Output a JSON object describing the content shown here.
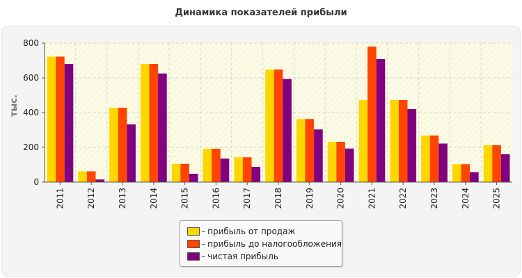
{
  "chart_data": {
    "type": "bar",
    "title": "Динамика показателей прибыли",
    "ylabel": "тыс.",
    "xlabel": "",
    "ylim": [
      0,
      800
    ],
    "yticks": [
      0,
      200,
      400,
      600,
      800
    ],
    "grid": true,
    "legend_position": "bottom-center",
    "categories": [
      "2011",
      "2012",
      "2013",
      "2014",
      "2015",
      "2016",
      "2017",
      "2018",
      "2019",
      "2020",
      "2021",
      "2022",
      "2023",
      "2024",
      "2025"
    ],
    "series": [
      {
        "name": "- прибыль от продаж",
        "color": "#ffd700",
        "values": [
          722,
          62,
          428,
          680,
          105,
          192,
          143,
          648,
          363,
          232,
          472,
          472,
          268,
          103,
          212
        ]
      },
      {
        "name": "- прибыль до налогообложения",
        "color": "#ff4500",
        "values": [
          722,
          62,
          428,
          680,
          105,
          192,
          143,
          648,
          363,
          232,
          780,
          472,
          268,
          103,
          212
        ]
      },
      {
        "name": "- чистая прибыль",
        "color": "#800080",
        "values": [
          680,
          15,
          332,
          625,
          48,
          135,
          88,
          593,
          303,
          193,
          708,
          420,
          222,
          57,
          160
        ]
      }
    ]
  }
}
